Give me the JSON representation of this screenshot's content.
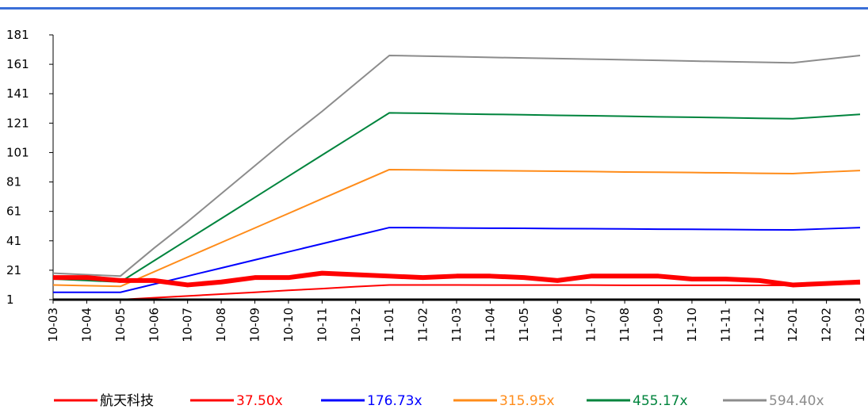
{
  "chart_data": {
    "type": "line",
    "categories": [
      "10-03",
      "10-04",
      "10-05",
      "10-06",
      "10-07",
      "10-08",
      "10-09",
      "10-10",
      "10-11",
      "10-12",
      "11-01",
      "11-02",
      "11-03",
      "11-04",
      "11-05",
      "11-06",
      "11-07",
      "11-08",
      "11-09",
      "11-10",
      "11-11",
      "11-12",
      "12-01",
      "12-02",
      "12-03"
    ],
    "series": [
      {
        "name": "航天科技",
        "color": "#ff0000",
        "values": [
          16,
          16,
          14,
          14,
          11,
          13,
          16,
          16,
          19,
          18,
          17,
          16,
          17,
          17,
          16,
          14,
          17,
          17,
          17,
          15,
          15,
          14,
          11,
          12,
          13
        ]
      },
      {
        "name": "37.50x",
        "color": "#ff0000",
        "values": [
          1,
          1,
          1,
          2.3,
          3.5,
          4.8,
          6,
          7.3,
          8.5,
          9.8,
          11,
          11,
          11,
          10.9,
          10.9,
          10.9,
          10.9,
          10.8,
          10.8,
          10.8,
          10.8,
          10.7,
          10.7,
          11.3,
          11.8
        ]
      },
      {
        "name": "176.73x",
        "color": "#0000ff",
        "values": [
          6,
          6,
          6,
          11.5,
          17,
          22.5,
          28,
          33.5,
          39,
          44.5,
          50,
          49.9,
          49.7,
          49.6,
          49.5,
          49.3,
          49.2,
          49.1,
          48.9,
          48.8,
          48.7,
          48.5,
          48.4,
          49.2,
          50
        ]
      },
      {
        "name": "315.95x",
        "color": "#ff8c1a",
        "values": [
          11,
          10.5,
          10,
          19.9,
          29.9,
          39.8,
          49.7,
          59.6,
          69.6,
          79.5,
          89.4,
          89.2,
          88.9,
          88.7,
          88.5,
          88.3,
          88.1,
          87.8,
          87.6,
          87.4,
          87.2,
          86.9,
          86.7,
          87.8,
          88.8
        ]
      },
      {
        "name": "455.17x",
        "color": "#00843d",
        "values": [
          15,
          14,
          13,
          27.4,
          41.8,
          56.1,
          70.5,
          84.9,
          99.3,
          113.6,
          128,
          127.7,
          127.3,
          127,
          126.7,
          126.3,
          126,
          125.7,
          125.3,
          125,
          124.7,
          124.3,
          124,
          125.5,
          127
        ]
      },
      {
        "name": "594.40x",
        "color": "#8c8c8c",
        "values": [
          19,
          18,
          17,
          36,
          54,
          73,
          92,
          111,
          129,
          148,
          167,
          166.6,
          166.2,
          165.7,
          165.3,
          164.9,
          164.5,
          164.1,
          163.7,
          163.2,
          162.8,
          162.4,
          162,
          164.5,
          167
        ]
      }
    ],
    "ylim": [
      1,
      181
    ],
    "yticks": [
      1,
      21,
      41,
      61,
      81,
      101,
      121,
      141,
      161,
      181
    ],
    "legend": "bottom"
  }
}
